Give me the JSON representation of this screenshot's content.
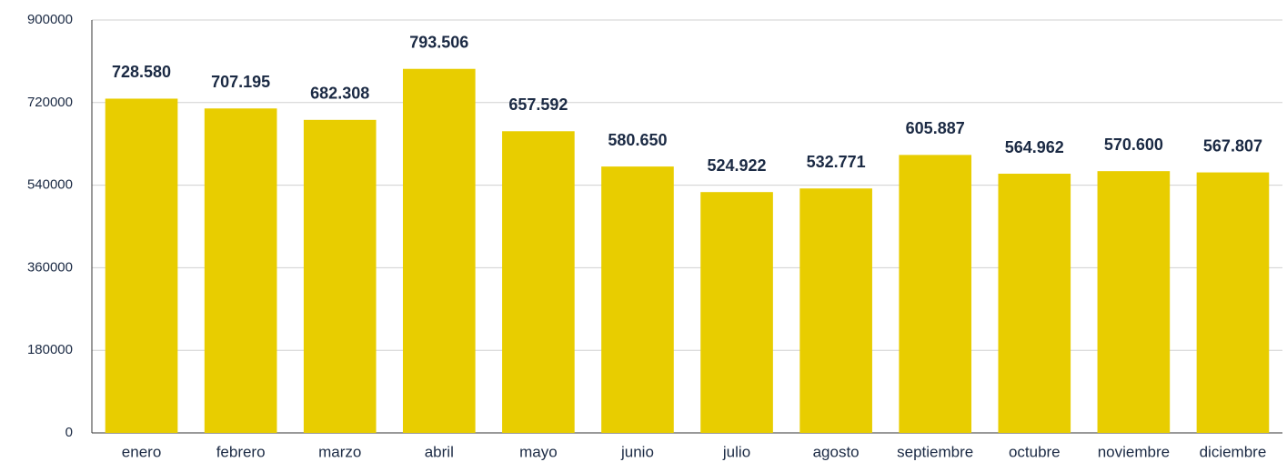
{
  "chart_data": {
    "type": "bar",
    "categories": [
      "enero",
      "febrero",
      "marzo",
      "abril",
      "mayo",
      "junio",
      "julio",
      "agosto",
      "septiembre",
      "octubre",
      "noviembre",
      "diciembre"
    ],
    "values": [
      728580,
      707195,
      682308,
      793506,
      657592,
      580650,
      524922,
      532771,
      605887,
      564962,
      570600,
      567807
    ],
    "value_labels": [
      "728.580",
      "707.195",
      "682.308",
      "793.506",
      "657.592",
      "580.650",
      "524.922",
      "532.771",
      "605.887",
      "564.962",
      "570.600",
      "567.807"
    ],
    "color": "#e8cd00",
    "ylim": [
      0,
      900000
    ],
    "yticks": [
      0,
      180000,
      360000,
      540000,
      720000,
      900000
    ],
    "grid": true
  }
}
